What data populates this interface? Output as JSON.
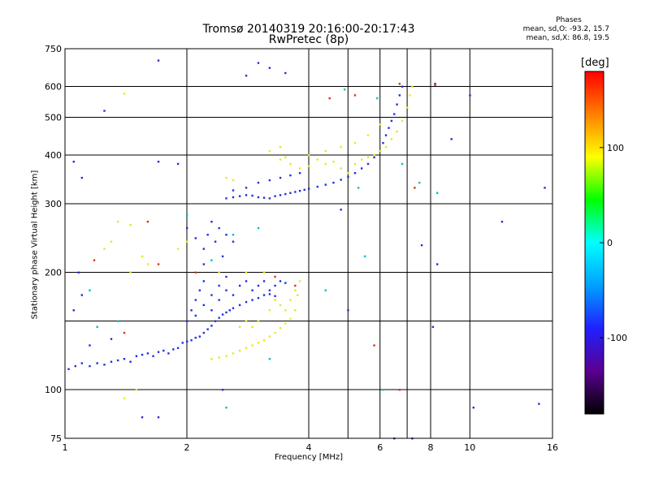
{
  "header": {
    "title_line1": "Tromsø 20140319 20:16:00-20:17:43",
    "title_line2": "RwPretec (8p)",
    "stats_title": "Phases",
    "stats_o": "mean, sd,O: -93.2, 15.7",
    "stats_x": "mean, sd,X: 86.8, 19.5"
  },
  "colorbar": {
    "unit_label": "[deg]",
    "tick_labels": [
      "100",
      "0",
      "-100"
    ],
    "tick_values": [
      100,
      0,
      -100
    ],
    "range": [
      -180,
      180
    ],
    "colors": [
      "#000000",
      "#5a0090",
      "#2020ff",
      "#00a0ff",
      "#00ffff",
      "#00ff00",
      "#ffff00",
      "#ff8000",
      "#ff0000"
    ]
  },
  "chart_data": {
    "type": "scatter",
    "title": "Tromsø 20140319 20:16:00-20:17:43 RwPretec (8p)",
    "xlabel": "Frequency [MHz]",
    "ylabel": "Stationary phase Virtual Height [km]",
    "xscale": "log",
    "yscale": "log",
    "xlim": [
      1,
      16
    ],
    "ylim": [
      75,
      750
    ],
    "xticks": [
      1,
      2,
      4,
      6,
      8,
      10,
      16
    ],
    "xtick_labels": [
      "1",
      "2",
      "4",
      "6",
      "8",
      "10",
      "16"
    ],
    "xgrid_only": [
      5,
      7
    ],
    "yticks": [
      75,
      100,
      200,
      300,
      400,
      500,
      600,
      750
    ],
    "ytick_labels": [
      "75",
      "100",
      "200",
      "300",
      "400",
      "500",
      "600",
      "750"
    ],
    "ygrid_only": [
      150
    ],
    "grid": true,
    "color_variable": "phase [deg]",
    "series": [
      {
        "name": "O",
        "color": "#2030e0",
        "points": [
          [
            1.02,
            113
          ],
          [
            1.06,
            115
          ],
          [
            1.1,
            117
          ],
          [
            1.15,
            115
          ],
          [
            1.2,
            117
          ],
          [
            1.25,
            116
          ],
          [
            1.3,
            118
          ],
          [
            1.35,
            119
          ],
          [
            1.4,
            120
          ],
          [
            1.45,
            118
          ],
          [
            1.5,
            122
          ],
          [
            1.55,
            123
          ],
          [
            1.6,
            124
          ],
          [
            1.65,
            122
          ],
          [
            1.7,
            125
          ],
          [
            1.75,
            126
          ],
          [
            1.8,
            124
          ],
          [
            1.85,
            127
          ],
          [
            1.9,
            128
          ],
          [
            1.95,
            132
          ],
          [
            2.0,
            133
          ],
          [
            2.05,
            134
          ],
          [
            2.1,
            136
          ],
          [
            2.15,
            137
          ],
          [
            2.2,
            140
          ],
          [
            2.25,
            143
          ],
          [
            2.3,
            146
          ],
          [
            2.35,
            150
          ],
          [
            2.4,
            153
          ],
          [
            2.45,
            156
          ],
          [
            2.5,
            158
          ],
          [
            2.55,
            160
          ],
          [
            2.6,
            162
          ],
          [
            2.7,
            165
          ],
          [
            2.8,
            168
          ],
          [
            2.9,
            170
          ],
          [
            3.0,
            172
          ],
          [
            3.1,
            175
          ],
          [
            3.2,
            176
          ],
          [
            3.3,
            174
          ],
          [
            2.0,
            150
          ],
          [
            2.05,
            160
          ],
          [
            2.1,
            170
          ],
          [
            2.15,
            180
          ],
          [
            2.2,
            190
          ],
          [
            2.1,
            155
          ],
          [
            2.2,
            165
          ],
          [
            2.3,
            175
          ],
          [
            2.4,
            185
          ],
          [
            2.5,
            195
          ],
          [
            2.3,
            160
          ],
          [
            2.4,
            170
          ],
          [
            2.5,
            180
          ],
          [
            2.6,
            175
          ],
          [
            2.7,
            185
          ],
          [
            2.8,
            190
          ],
          [
            2.9,
            180
          ],
          [
            3.0,
            185
          ],
          [
            3.1,
            190
          ],
          [
            3.2,
            180
          ],
          [
            3.3,
            185
          ],
          [
            3.4,
            190
          ],
          [
            3.5,
            188
          ],
          [
            2.2,
            230
          ],
          [
            2.25,
            250
          ],
          [
            2.3,
            270
          ],
          [
            2.35,
            240
          ],
          [
            2.4,
            260
          ],
          [
            2.45,
            220
          ],
          [
            2.5,
            250
          ],
          [
            2.6,
            240
          ],
          [
            2.0,
            260
          ],
          [
            2.1,
            245
          ],
          [
            2.2,
            210
          ],
          [
            2.5,
            310
          ],
          [
            2.6,
            312
          ],
          [
            2.7,
            314
          ],
          [
            2.8,
            316
          ],
          [
            2.9,
            315
          ],
          [
            3.0,
            312
          ],
          [
            3.1,
            311
          ],
          [
            3.2,
            310
          ],
          [
            3.3,
            314
          ],
          [
            3.4,
            316
          ],
          [
            3.5,
            318
          ],
          [
            3.6,
            320
          ],
          [
            3.7,
            322
          ],
          [
            3.8,
            324
          ],
          [
            3.9,
            326
          ],
          [
            4.0,
            328
          ],
          [
            4.2,
            332
          ],
          [
            4.4,
            336
          ],
          [
            4.6,
            340
          ],
          [
            4.8,
            346
          ],
          [
            5.0,
            352
          ],
          [
            5.2,
            360
          ],
          [
            5.4,
            370
          ],
          [
            5.6,
            380
          ],
          [
            5.8,
            395
          ],
          [
            6.0,
            410
          ],
          [
            6.1,
            430
          ],
          [
            6.2,
            450
          ],
          [
            6.3,
            470
          ],
          [
            6.4,
            490
          ],
          [
            6.5,
            510
          ],
          [
            6.6,
            540
          ],
          [
            6.7,
            570
          ],
          [
            6.8,
            600
          ],
          [
            3.0,
            340
          ],
          [
            3.2,
            345
          ],
          [
            3.4,
            350
          ],
          [
            3.6,
            355
          ],
          [
            3.8,
            360
          ],
          [
            2.8,
            330
          ],
          [
            2.6,
            325
          ],
          [
            3.0,
            690
          ],
          [
            3.2,
            670
          ],
          [
            2.8,
            640
          ],
          [
            3.5,
            650
          ],
          [
            1.7,
            700
          ],
          [
            1.25,
            520
          ],
          [
            1.7,
            385
          ],
          [
            1.9,
            380
          ],
          [
            8.2,
            610
          ],
          [
            10.0,
            570
          ],
          [
            15.3,
            330
          ],
          [
            14.8,
            92
          ],
          [
            10.2,
            90
          ],
          [
            12.0,
            270
          ],
          [
            4.8,
            290
          ],
          [
            7.6,
            235
          ],
          [
            8.3,
            210
          ],
          [
            1.05,
            385
          ],
          [
            1.1,
            350
          ],
          [
            1.08,
            200
          ],
          [
            1.55,
            85
          ],
          [
            1.7,
            85
          ],
          [
            2.45,
            100
          ],
          [
            5.0,
            160
          ],
          [
            8.1,
            145
          ],
          [
            9.0,
            440
          ],
          [
            1.05,
            160
          ],
          [
            1.1,
            175
          ],
          [
            1.15,
            130
          ],
          [
            1.3,
            135
          ],
          [
            7.2,
            75
          ],
          [
            6.5,
            75
          ]
        ]
      },
      {
        "name": "X",
        "color": "#e8e820",
        "points": [
          [
            2.3,
            120
          ],
          [
            2.4,
            121
          ],
          [
            2.5,
            122
          ],
          [
            2.6,
            124
          ],
          [
            2.7,
            126
          ],
          [
            2.8,
            128
          ],
          [
            2.9,
            130
          ],
          [
            3.0,
            132
          ],
          [
            3.1,
            134
          ],
          [
            3.2,
            137
          ],
          [
            3.3,
            140
          ],
          [
            3.4,
            144
          ],
          [
            3.5,
            148
          ],
          [
            3.6,
            152
          ],
          [
            3.7,
            160
          ],
          [
            3.75,
            175
          ],
          [
            3.8,
            190
          ],
          [
            3.7,
            180
          ],
          [
            3.6,
            170
          ],
          [
            3.5,
            160
          ],
          [
            3.4,
            165
          ],
          [
            3.3,
            170
          ],
          [
            3.2,
            160
          ],
          [
            3.0,
            150
          ],
          [
            2.9,
            145
          ],
          [
            2.8,
            150
          ],
          [
            2.7,
            145
          ],
          [
            2.5,
            350
          ],
          [
            2.6,
            345
          ],
          [
            3.4,
            390
          ],
          [
            3.5,
            395
          ],
          [
            3.6,
            380
          ],
          [
            3.8,
            370
          ],
          [
            4.0,
            375
          ],
          [
            4.2,
            390
          ],
          [
            4.4,
            380
          ],
          [
            4.6,
            385
          ],
          [
            4.8,
            370
          ],
          [
            5.0,
            360
          ],
          [
            5.2,
            380
          ],
          [
            5.4,
            390
          ],
          [
            5.6,
            395
          ],
          [
            5.8,
            400
          ],
          [
            6.0,
            410
          ],
          [
            6.2,
            420
          ],
          [
            6.4,
            440
          ],
          [
            6.6,
            460
          ],
          [
            6.8,
            490
          ],
          [
            7.0,
            530
          ],
          [
            7.1,
            570
          ],
          [
            7.2,
            600
          ],
          [
            4.0,
            400
          ],
          [
            4.4,
            410
          ],
          [
            4.8,
            420
          ],
          [
            5.2,
            430
          ],
          [
            5.6,
            450
          ],
          [
            6.0,
            480
          ],
          [
            3.2,
            410
          ],
          [
            3.4,
            420
          ],
          [
            1.4,
            95
          ],
          [
            1.5,
            100
          ],
          [
            1.35,
            270
          ],
          [
            1.45,
            265
          ],
          [
            1.55,
            220
          ],
          [
            1.6,
            210
          ],
          [
            1.45,
            200
          ],
          [
            1.3,
            240
          ],
          [
            1.9,
            230
          ],
          [
            2.0,
            240
          ],
          [
            2.4,
            200
          ],
          [
            2.8,
            200
          ],
          [
            3.1,
            200
          ],
          [
            1.25,
            230
          ],
          [
            1.4,
            575
          ]
        ]
      },
      {
        "name": "mixed",
        "color": "#00c0c0",
        "points": [
          [
            1.15,
            180
          ],
          [
            1.2,
            145
          ],
          [
            1.35,
            150
          ],
          [
            2.0,
            280
          ],
          [
            2.3,
            215
          ],
          [
            2.6,
            250
          ],
          [
            3.0,
            260
          ],
          [
            4.4,
            180
          ],
          [
            5.3,
            330
          ],
          [
            5.5,
            220
          ],
          [
            6.8,
            380
          ],
          [
            7.5,
            340
          ],
          [
            8.3,
            320
          ],
          [
            4.9,
            590
          ],
          [
            5.9,
            560
          ],
          [
            6.1,
            100
          ],
          [
            2.5,
            90
          ],
          [
            3.2,
            120
          ]
        ]
      },
      {
        "name": "red",
        "color": "#e03010",
        "points": [
          [
            1.18,
            215
          ],
          [
            1.4,
            140
          ],
          [
            1.6,
            270
          ],
          [
            1.7,
            210
          ],
          [
            3.3,
            195
          ],
          [
            5.8,
            130
          ],
          [
            6.7,
            100
          ],
          [
            7.3,
            330
          ],
          [
            4.5,
            560
          ],
          [
            5.2,
            570
          ],
          [
            6.7,
            610
          ],
          [
            8.2,
            605
          ],
          [
            2.1,
            200
          ],
          [
            3.7,
            185
          ]
        ]
      }
    ]
  }
}
